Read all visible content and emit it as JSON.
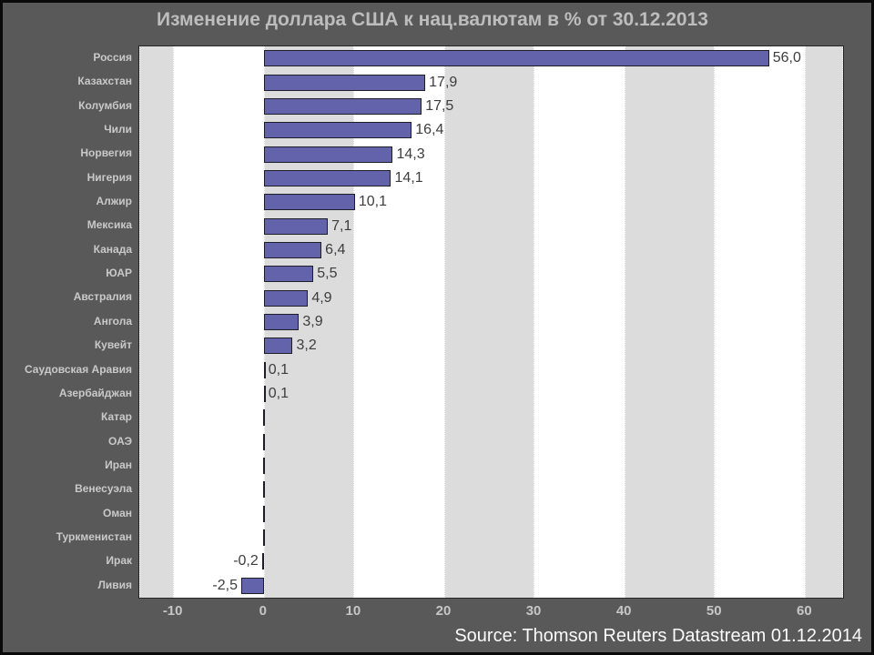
{
  "title": "Изменение доллара США к нац.валютам в % от 30.12.2013",
  "source": "Source: Thomson Reuters Datastream 01.12.2014",
  "colors": {
    "page_background": "#595959",
    "plot_background": "#ffffff",
    "band_gray": "#dcdcdc",
    "bar_fill": "#6363ac",
    "bar_border": "#1e1e28",
    "title_text": "#bdbdbd",
    "axis_label_text": "#c9c9c9",
    "value_label_text": "#3d3d3d",
    "source_text": "#fafafa"
  },
  "chart_data": {
    "type": "bar",
    "orientation": "horizontal",
    "title": "Изменение доллара США к нац.валютам в % от 30.12.2013",
    "xlabel": "",
    "ylabel": "",
    "xlim": [
      -13.8,
      64.2
    ],
    "x_ticks": [
      -10,
      0,
      10,
      20,
      30,
      40,
      50,
      60
    ],
    "x_tick_labels": [
      "-10",
      "0",
      "10",
      "20",
      "30",
      "40",
      "50",
      "60"
    ],
    "grid": "alternating vertical gray/white bands every 10 units",
    "legend": "none",
    "categories": [
      "Россия",
      "Казахстан",
      "Колумбия",
      "Чили",
      "Норвегия",
      "Нигерия",
      "Алжир",
      "Мексика",
      "Канада",
      "ЮАР",
      "Австралия",
      "Ангола",
      "Кувейт",
      "Саудовская Аравия",
      "Азербайджан",
      "Катар",
      "ОАЭ",
      "Иран",
      "Венесуэла",
      "Оман",
      "Туркменистан",
      "Ирак",
      "Ливия"
    ],
    "values": [
      56.0,
      17.9,
      17.5,
      16.4,
      14.3,
      14.1,
      10.1,
      7.1,
      6.4,
      5.5,
      4.9,
      3.9,
      3.2,
      0.1,
      0.1,
      0.0,
      0.0,
      0.0,
      0.0,
      0.0,
      0.0,
      -0.2,
      -2.5
    ],
    "value_labels": [
      "56,0",
      "17,9",
      "17,5",
      "16,4",
      "14,3",
      "14,1",
      "10,1",
      "7,1",
      "6,4",
      "5,5",
      "4,9",
      "3,9",
      "3,2",
      "0,1",
      "0,1",
      "",
      "",
      "",
      "",
      "",
      "",
      "-0,2",
      "-2,5"
    ]
  }
}
